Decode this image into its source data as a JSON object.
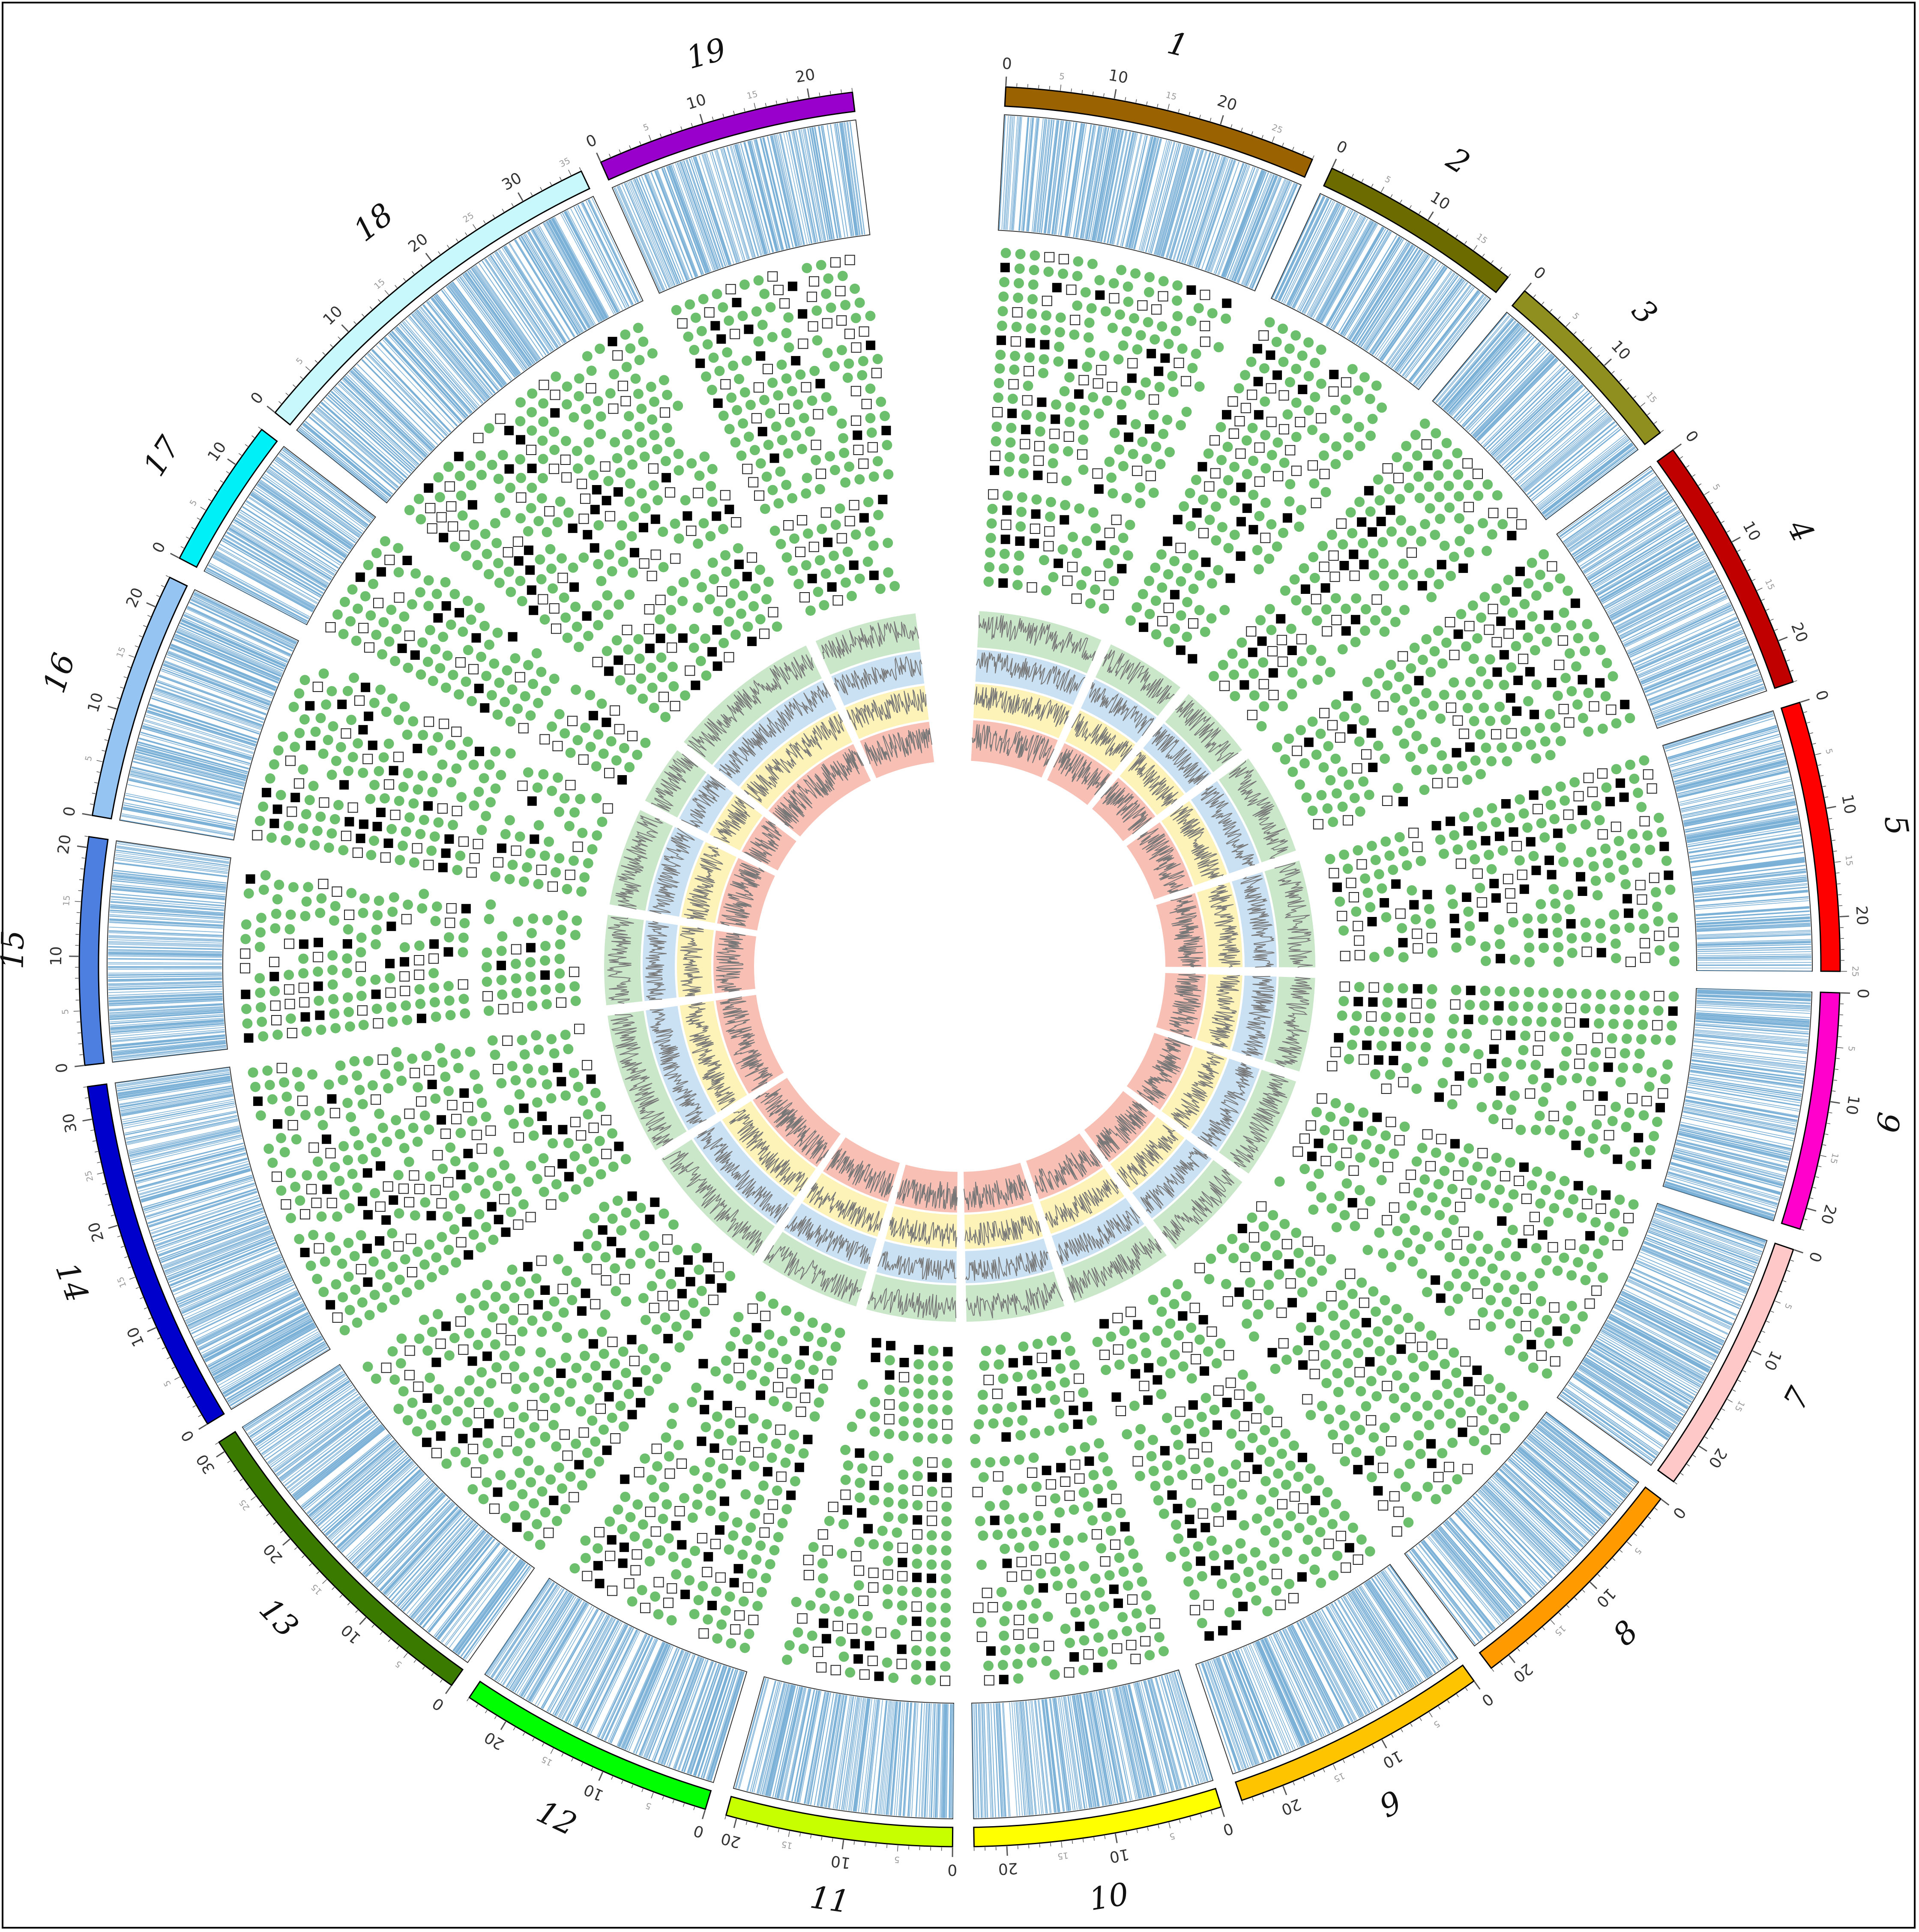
{
  "figure": {
    "type": "circos-genome-plot",
    "tracks": [
      "chromosome-ideogram",
      "gene-density-lines",
      "genotype-glyph-rings",
      "line-tracks"
    ],
    "glyph_legend": {
      "green_circle": "#6cbf6c",
      "filled_square": "#000000",
      "open_square": "#ffffff"
    },
    "line_track_colors": [
      "#9fd49f",
      "#9cc8ea",
      "#fbe97e",
      "#f28b79"
    ],
    "density_line_color": "#4f95c9"
  },
  "chromosomes": [
    {
      "label": "1",
      "color": "#9a6200",
      "length": 29,
      "major_ticks": [
        "0",
        "10",
        "20"
      ]
    },
    {
      "label": "2",
      "color": "#6b6b00",
      "length": 19,
      "major_ticks": [
        "0",
        "10"
      ]
    },
    {
      "label": "3",
      "color": "#8f8f1f",
      "length": 18,
      "major_ticks": [
        "0",
        "10"
      ]
    },
    {
      "label": "4",
      "color": "#c00000",
      "length": 24,
      "major_ticks": [
        "0",
        "10",
        "20"
      ]
    },
    {
      "label": "5",
      "color": "#ff0000",
      "length": 25,
      "major_ticks": [
        "0",
        "10",
        "20"
      ]
    },
    {
      "label": "6",
      "color": "#ff00cc",
      "length": 22,
      "major_ticks": [
        "0",
        "10",
        "20"
      ]
    },
    {
      "label": "7",
      "color": "#ffc8c8",
      "length": 24,
      "major_ticks": [
        "0",
        "10",
        "20"
      ]
    },
    {
      "label": "8",
      "color": "#ff9a00",
      "length": 22,
      "major_ticks": [
        "0",
        "10",
        "20"
      ]
    },
    {
      "label": "9",
      "color": "#ffc400",
      "length": 24,
      "major_ticks": [
        "0",
        "10",
        "20"
      ]
    },
    {
      "label": "10",
      "color": "#ffff00",
      "length": 23,
      "major_ticks": [
        "0",
        "10",
        "20"
      ]
    },
    {
      "label": "11",
      "color": "#c8ff00",
      "length": 21,
      "major_ticks": [
        "0",
        "10",
        "20"
      ]
    },
    {
      "label": "12",
      "color": "#00ff00",
      "length": 24,
      "major_ticks": [
        "0",
        "10",
        "20"
      ]
    },
    {
      "label": "13",
      "color": "#3b7a00",
      "length": 31,
      "major_ticks": [
        "0",
        "10",
        "20",
        "30"
      ]
    },
    {
      "label": "14",
      "color": "#0000cc",
      "length": 33,
      "major_ticks": [
        "0",
        "10",
        "20",
        "30"
      ]
    },
    {
      "label": "15",
      "color": "#4d7fe0",
      "length": 21,
      "major_ticks": [
        "0",
        "10",
        "20"
      ]
    },
    {
      "label": "16",
      "color": "#96c4f2",
      "length": 23,
      "major_ticks": [
        "0",
        "10",
        "20"
      ]
    },
    {
      "label": "17",
      "color": "#00f0f8",
      "length": 14,
      "major_ticks": [
        "0",
        "10"
      ]
    },
    {
      "label": "18",
      "color": "#c8f8fc",
      "length": 36,
      "major_ticks": [
        "0",
        "10",
        "20",
        "30"
      ]
    },
    {
      "label": "19",
      "color": "#9900cc",
      "length": 24,
      "major_ticks": [
        "0",
        "10",
        "20"
      ]
    }
  ]
}
